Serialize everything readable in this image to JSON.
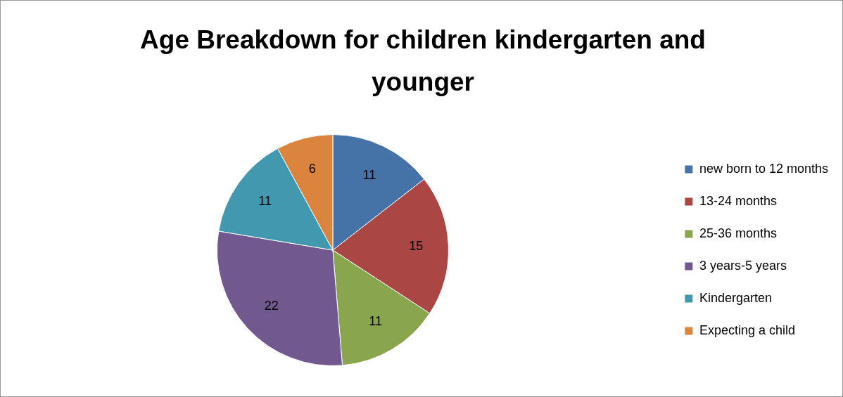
{
  "chart_data": {
    "type": "pie",
    "title": "Age Breakdown for children kindergarten and younger",
    "categories": [
      "new born to 12 months",
      "13-24 months",
      "25-36 months",
      "3 years-5 years",
      "Kindergarten",
      "Expecting a child"
    ],
    "values": [
      11,
      15,
      11,
      22,
      11,
      6
    ],
    "colors": [
      "#4572a7",
      "#aa4643",
      "#89a54e",
      "#71588f",
      "#4198af",
      "#db843d"
    ],
    "data_labels": true,
    "legend": "right"
  }
}
